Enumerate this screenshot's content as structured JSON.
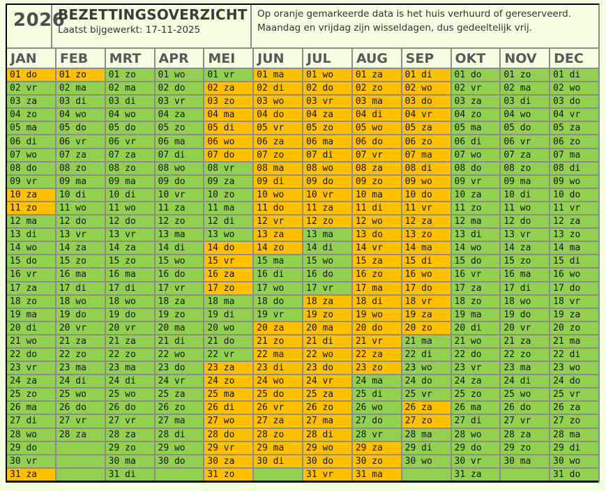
{
  "header": {
    "year": "2026",
    "title": "BEZETTINGSOVERZICHT",
    "updated": "Laatst bijgewerkt: 17-11-2025",
    "note_line1": "Op oranje gemarkeerde data is het huis verhuurd of gereserveerd.",
    "note_line2": "Maandag en vrijdag zijn wisseldagen, dus gedeeltelijk vrij."
  },
  "colors": {
    "occupied": "#ffc000",
    "free": "#92d050",
    "gridline": "#8c8c8c",
    "background": "#f4ffe2"
  },
  "months": [
    {
      "label": "JAN",
      "weekdays": [
        "do",
        "vr",
        "za",
        "zo",
        "ma",
        "di",
        "wo",
        "do",
        "vr",
        "za",
        "zo",
        "ma",
        "di",
        "wo",
        "do",
        "vr",
        "za",
        "zo",
        "ma",
        "di",
        "wo",
        "do",
        "vr",
        "za",
        "zo",
        "ma",
        "di",
        "wo",
        "do",
        "vr",
        "za"
      ],
      "occupied": [
        1,
        10,
        11,
        31
      ]
    },
    {
      "label": "FEB",
      "weekdays": [
        "zo",
        "ma",
        "di",
        "wo",
        "do",
        "vr",
        "za",
        "zo",
        "ma",
        "di",
        "wo",
        "do",
        "vr",
        "za",
        "zo",
        "ma",
        "di",
        "wo",
        "do",
        "vr",
        "za",
        "zo",
        "ma",
        "di",
        "wo",
        "do",
        "vr",
        "za"
      ],
      "occupied": [
        1
      ]
    },
    {
      "label": "MRT",
      "weekdays": [
        "zo",
        "ma",
        "di",
        "wo",
        "do",
        "vr",
        "za",
        "zo",
        "ma",
        "di",
        "wo",
        "do",
        "vr",
        "za",
        "zo",
        "ma",
        "di",
        "wo",
        "do",
        "vr",
        "za",
        "zo",
        "ma",
        "di",
        "wo",
        "do",
        "vr",
        "za",
        "zo",
        "ma",
        "di"
      ],
      "occupied": []
    },
    {
      "label": "APR",
      "weekdays": [
        "wo",
        "do",
        "vr",
        "za",
        "zo",
        "ma",
        "di",
        "wo",
        "do",
        "vr",
        "za",
        "zo",
        "ma",
        "di",
        "wo",
        "do",
        "vr",
        "za",
        "zo",
        "ma",
        "di",
        "wo",
        "do",
        "vr",
        "za",
        "zo",
        "ma",
        "di",
        "wo",
        "do"
      ],
      "occupied": []
    },
    {
      "label": "MEI",
      "weekdays": [
        "vr",
        "za",
        "zo",
        "ma",
        "di",
        "wo",
        "do",
        "vr",
        "za",
        "zo",
        "ma",
        "di",
        "wo",
        "do",
        "vr",
        "za",
        "zo",
        "ma",
        "di",
        "wo",
        "do",
        "vr",
        "za",
        "zo",
        "ma",
        "di",
        "wo",
        "do",
        "vr",
        "za",
        "zo"
      ],
      "occupied": [
        2,
        3,
        4,
        5,
        6,
        7,
        14,
        15,
        16,
        17,
        23,
        24,
        25,
        26,
        27,
        28,
        29,
        30,
        31
      ]
    },
    {
      "label": "JUN",
      "weekdays": [
        "ma",
        "di",
        "wo",
        "do",
        "vr",
        "za",
        "zo",
        "ma",
        "di",
        "wo",
        "do",
        "vr",
        "za",
        "zo",
        "ma",
        "di",
        "wo",
        "do",
        "vr",
        "za",
        "zo",
        "ma",
        "di",
        "wo",
        "do",
        "vr",
        "za",
        "zo",
        "ma",
        "di"
      ],
      "occupied": [
        1,
        2,
        3,
        4,
        5,
        6,
        7,
        8,
        9,
        10,
        11,
        12,
        13,
        14,
        20,
        21,
        22,
        23,
        24,
        25,
        26,
        27,
        28,
        29,
        30
      ]
    },
    {
      "label": "JUL",
      "weekdays": [
        "wo",
        "do",
        "vr",
        "za",
        "zo",
        "ma",
        "di",
        "wo",
        "do",
        "vr",
        "za",
        "zo",
        "ma",
        "di",
        "wo",
        "do",
        "vr",
        "za",
        "zo",
        "ma",
        "di",
        "wo",
        "do",
        "vr",
        "za",
        "zo",
        "ma",
        "di",
        "wo",
        "do",
        "vr"
      ],
      "occupied": [
        1,
        2,
        3,
        4,
        5,
        6,
        7,
        8,
        9,
        10,
        11,
        12,
        18,
        19,
        20,
        21,
        22,
        23,
        24,
        25,
        26,
        27,
        28,
        29,
        30,
        31
      ]
    },
    {
      "label": "AUG",
      "weekdays": [
        "za",
        "zo",
        "ma",
        "di",
        "wo",
        "do",
        "vr",
        "za",
        "zo",
        "ma",
        "di",
        "wo",
        "do",
        "vr",
        "za",
        "zo",
        "ma",
        "di",
        "wo",
        "do",
        "vr",
        "za",
        "zo",
        "ma",
        "di",
        "wo",
        "do",
        "vr",
        "za",
        "zo",
        "ma"
      ],
      "occupied": [
        1,
        2,
        3,
        4,
        5,
        6,
        7,
        8,
        9,
        10,
        11,
        12,
        13,
        14,
        15,
        16,
        17,
        18,
        19,
        20,
        21,
        22,
        23,
        29,
        30,
        31
      ]
    },
    {
      "label": "SEP",
      "weekdays": [
        "di",
        "wo",
        "do",
        "vr",
        "za",
        "zo",
        "ma",
        "di",
        "wo",
        "do",
        "vr",
        "za",
        "zo",
        "ma",
        "di",
        "wo",
        "do",
        "vr",
        "za",
        "zo",
        "ma",
        "di",
        "wo",
        "do",
        "vr",
        "za",
        "zo",
        "ma",
        "di",
        "wo"
      ],
      "occupied": [
        1,
        2,
        3,
        4,
        5,
        6,
        7,
        8,
        9,
        10,
        11,
        12,
        13,
        14,
        15,
        16,
        17,
        18,
        19,
        20,
        26,
        27
      ]
    },
    {
      "label": "OKT",
      "weekdays": [
        "do",
        "vr",
        "za",
        "zo",
        "ma",
        "di",
        "wo",
        "do",
        "vr",
        "za",
        "zo",
        "ma",
        "di",
        "wo",
        "do",
        "vr",
        "za",
        "zo",
        "ma",
        "di",
        "wo",
        "do",
        "vr",
        "za",
        "zo",
        "ma",
        "di",
        "wo",
        "do",
        "vr",
        "za"
      ],
      "occupied": []
    },
    {
      "label": "NOV",
      "weekdays": [
        "zo",
        "ma",
        "di",
        "wo",
        "do",
        "vr",
        "za",
        "zo",
        "ma",
        "di",
        "wo",
        "do",
        "vr",
        "za",
        "zo",
        "ma",
        "di",
        "wo",
        "do",
        "vr",
        "za",
        "zo",
        "ma",
        "di",
        "wo",
        "do",
        "vr",
        "za",
        "zo",
        "ma"
      ],
      "occupied": []
    },
    {
      "label": "DEC",
      "weekdays": [
        "di",
        "wo",
        "do",
        "vr",
        "za",
        "zo",
        "ma",
        "di",
        "wo",
        "do",
        "vr",
        "za",
        "zo",
        "ma",
        "di",
        "wo",
        "do",
        "vr",
        "za",
        "zo",
        "ma",
        "di",
        "wo",
        "do",
        "vr",
        "za",
        "zo",
        "ma",
        "di",
        "wo",
        "do"
      ],
      "occupied": []
    }
  ]
}
